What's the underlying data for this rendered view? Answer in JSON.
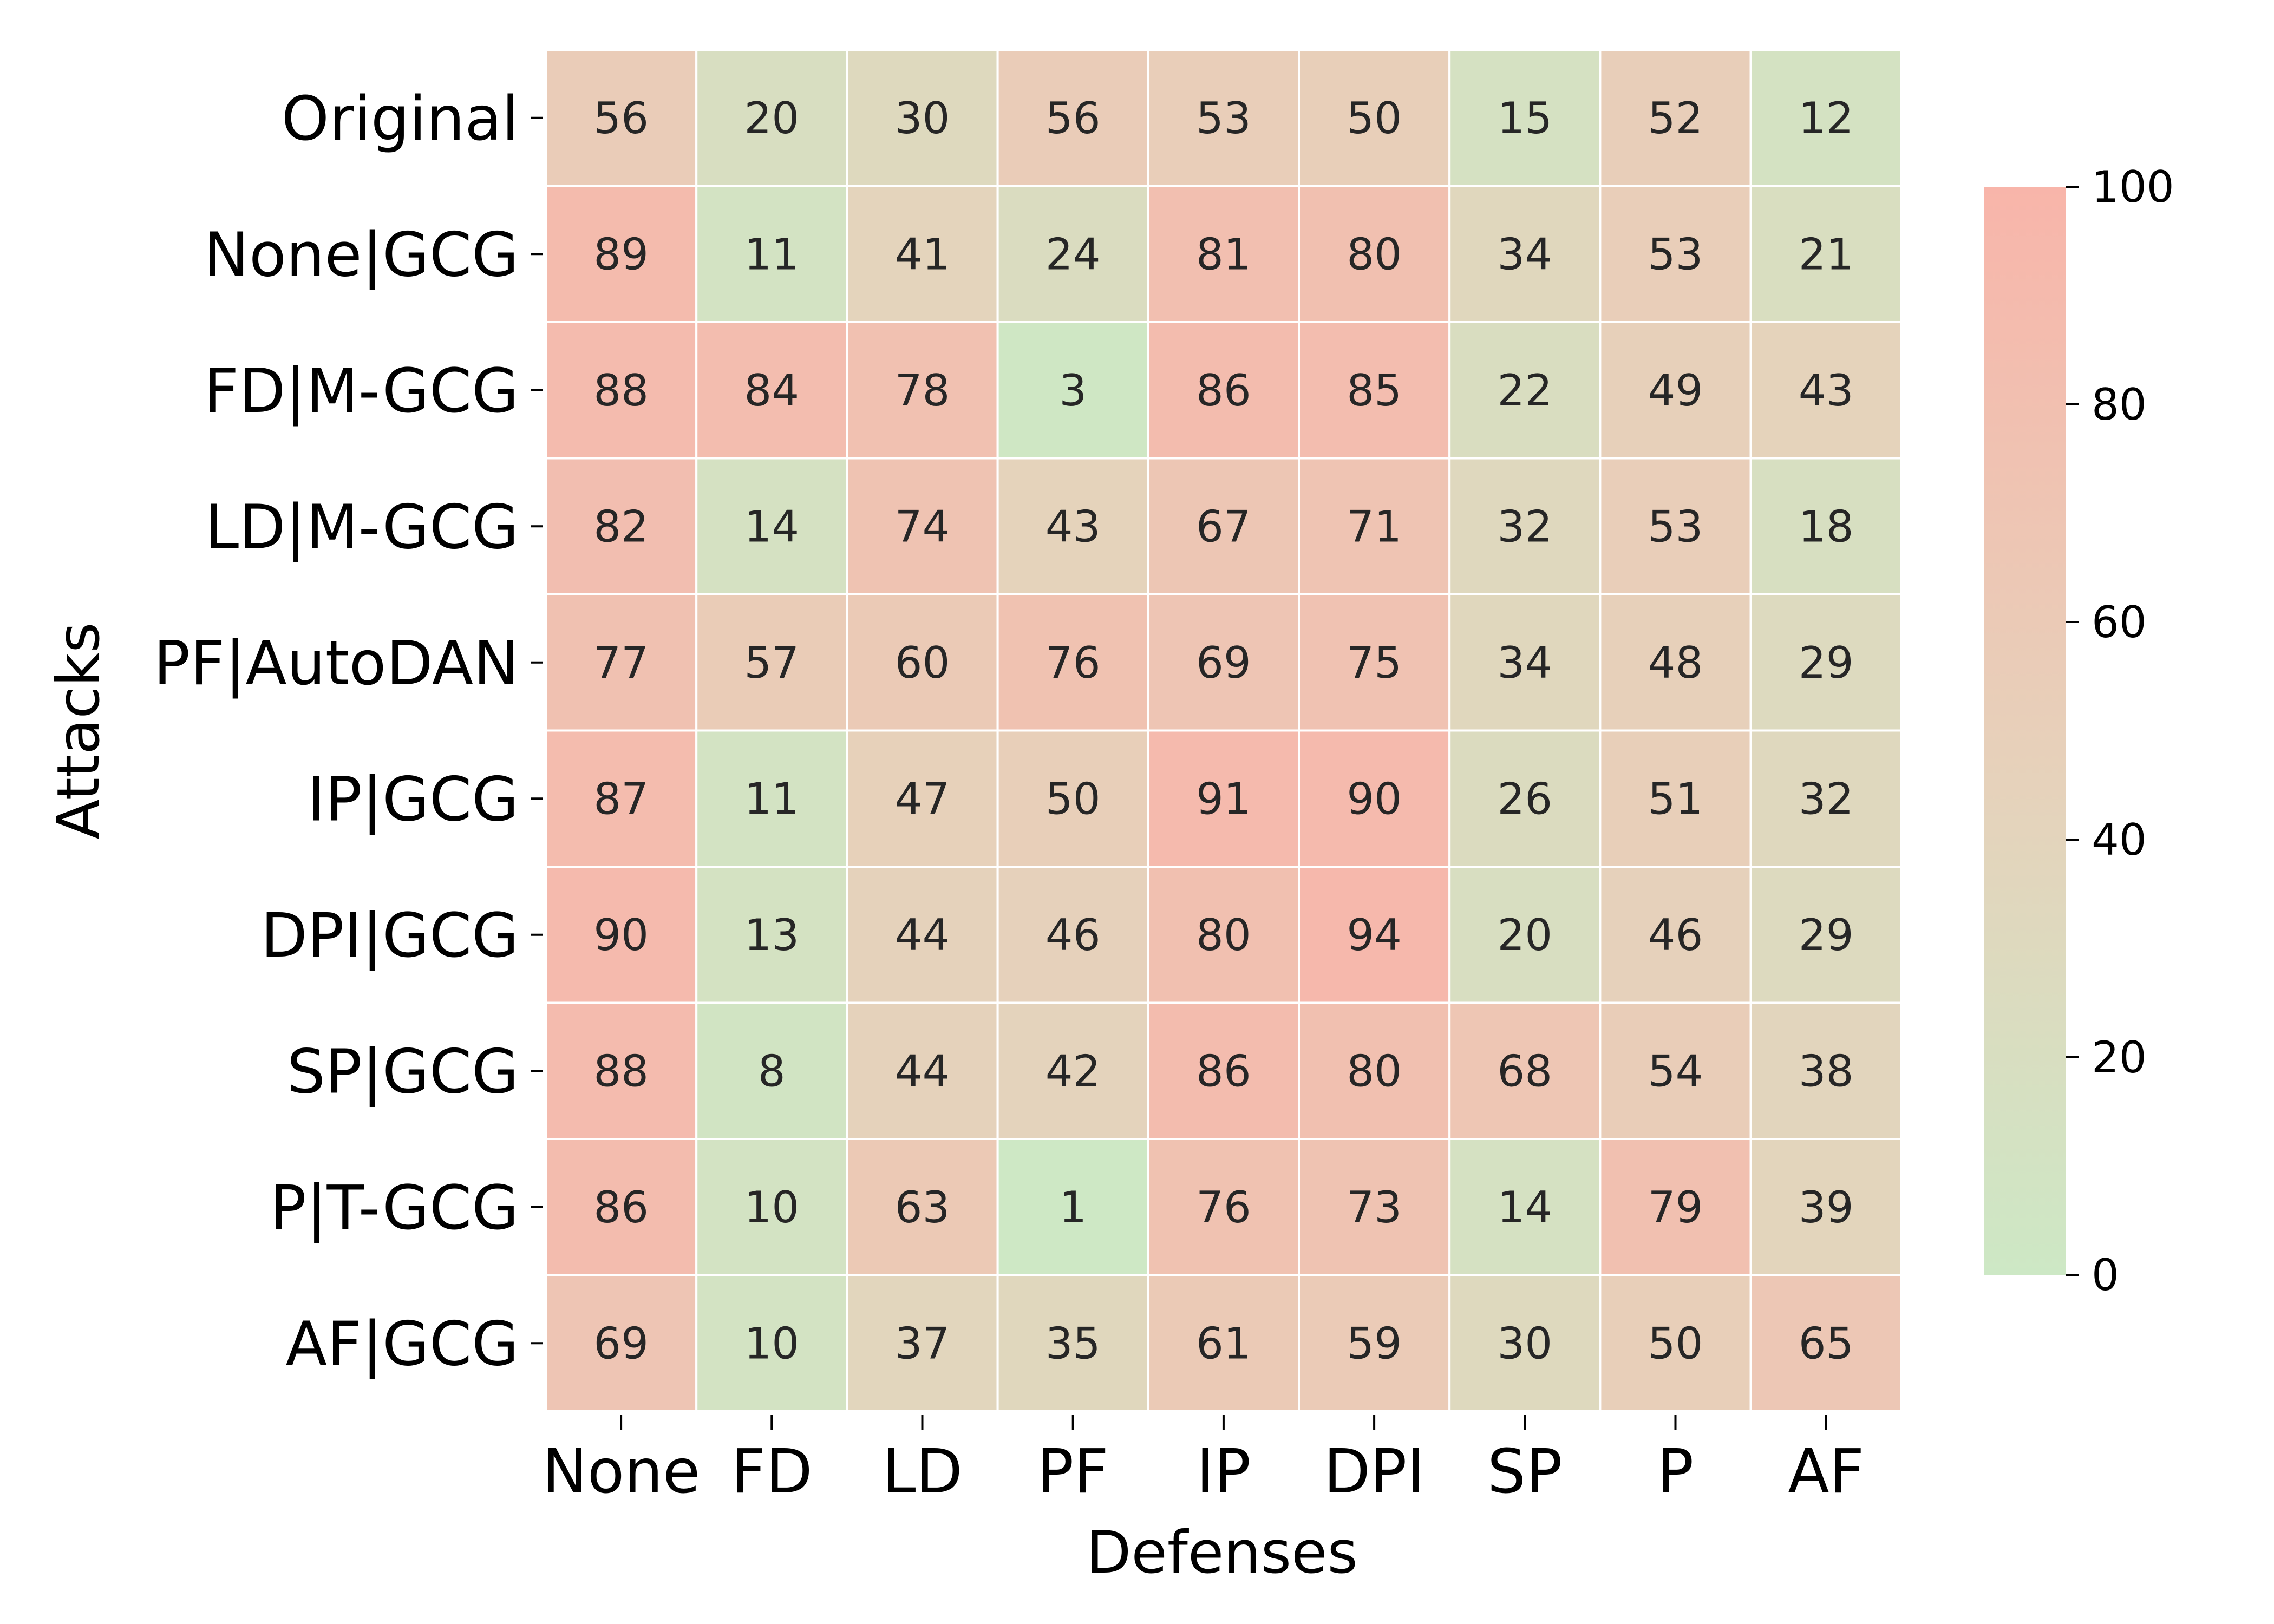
{
  "chart_data": {
    "type": "heatmap",
    "title": "",
    "xlabel": "Defenses",
    "ylabel": "Attacks",
    "x_categories": [
      "None",
      "FD",
      "LD",
      "PF",
      "IP",
      "DPI",
      "SP",
      "P",
      "AF"
    ],
    "y_categories": [
      "Original",
      "None|GCG",
      "FD|M-GCG",
      "LD|M-GCG",
      "PF|AutoDAN",
      "IP|GCG",
      "DPI|GCG",
      "SP|GCG",
      "P|T-GCG",
      "AF|GCG"
    ],
    "values": [
      [
        56,
        20,
        30,
        56,
        53,
        50,
        15,
        52,
        12
      ],
      [
        89,
        11,
        41,
        24,
        81,
        80,
        34,
        53,
        21
      ],
      [
        88,
        84,
        78,
        3,
        86,
        85,
        22,
        49,
        43
      ],
      [
        82,
        14,
        74,
        43,
        67,
        71,
        32,
        53,
        18
      ],
      [
        77,
        57,
        60,
        76,
        69,
        75,
        34,
        48,
        29
      ],
      [
        87,
        11,
        47,
        50,
        91,
        90,
        26,
        51,
        32
      ],
      [
        90,
        13,
        44,
        46,
        80,
        94,
        20,
        46,
        29
      ],
      [
        88,
        8,
        44,
        42,
        86,
        80,
        68,
        54,
        38
      ],
      [
        86,
        10,
        63,
        1,
        76,
        73,
        14,
        79,
        39
      ],
      [
        69,
        10,
        37,
        35,
        61,
        59,
        30,
        50,
        65
      ]
    ],
    "colorbar": {
      "range": [
        0,
        100
      ],
      "ticks": [
        "0",
        "20",
        "40",
        "60",
        "80",
        "100"
      ],
      "color_low": "#cde8c5",
      "color_mid": "#e6d2bb",
      "color_high": "#f8b5aa"
    },
    "grid": true,
    "cell_border_color": "#ffffff"
  }
}
